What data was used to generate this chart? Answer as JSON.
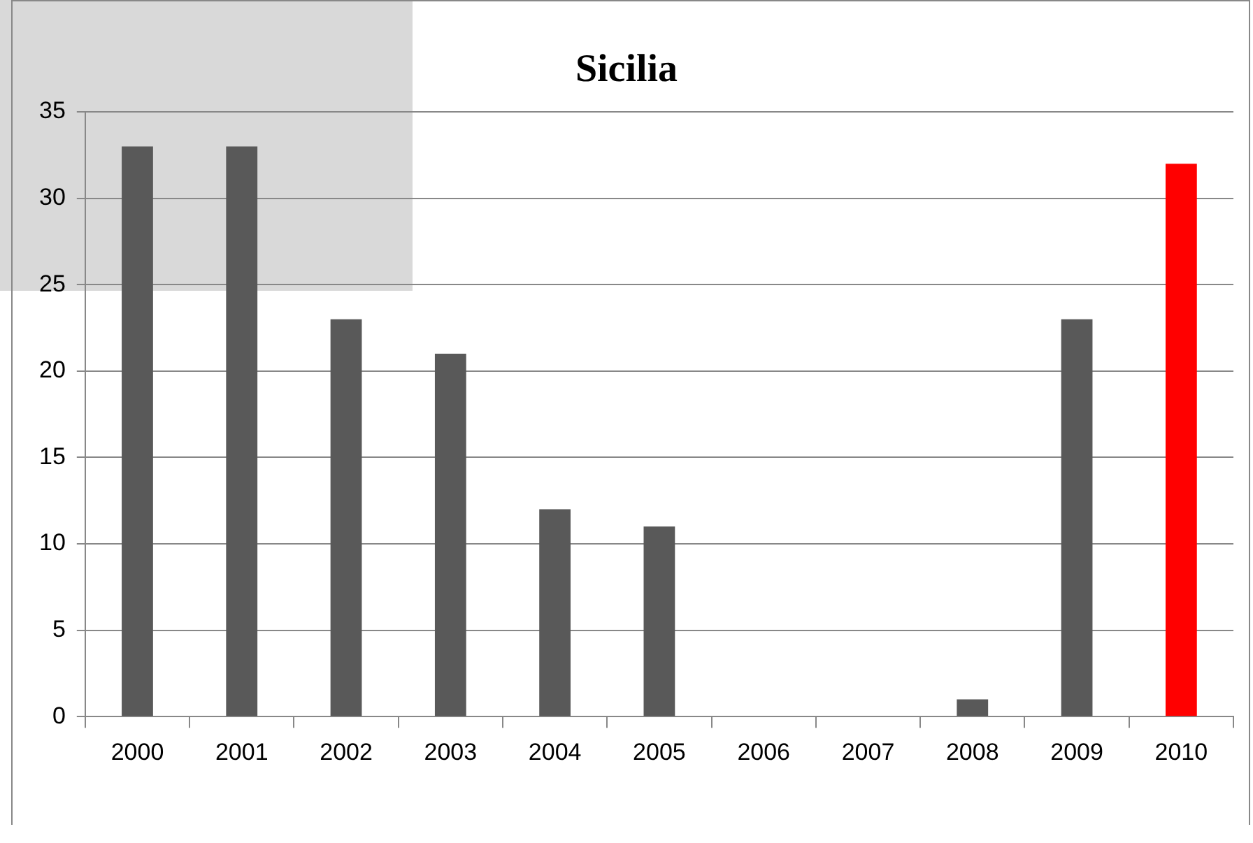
{
  "chart_data": {
    "type": "bar",
    "title": "Sicilia",
    "categories": [
      "2000",
      "2001",
      "2002",
      "2003",
      "2004",
      "2005",
      "2006",
      "2007",
      "2008",
      "2009",
      "2010"
    ],
    "values": [
      33,
      33,
      23,
      21,
      12,
      11,
      0,
      0,
      1,
      23,
      32
    ],
    "colors": [
      "#595959",
      "#595959",
      "#595959",
      "#595959",
      "#595959",
      "#595959",
      "#595959",
      "#595959",
      "#595959",
      "#595959",
      "#ff0000"
    ],
    "ylim": [
      0,
      35
    ],
    "yticks": [
      0,
      5,
      10,
      15,
      20,
      25,
      30,
      35
    ],
    "grid": "y",
    "legend": false
  }
}
